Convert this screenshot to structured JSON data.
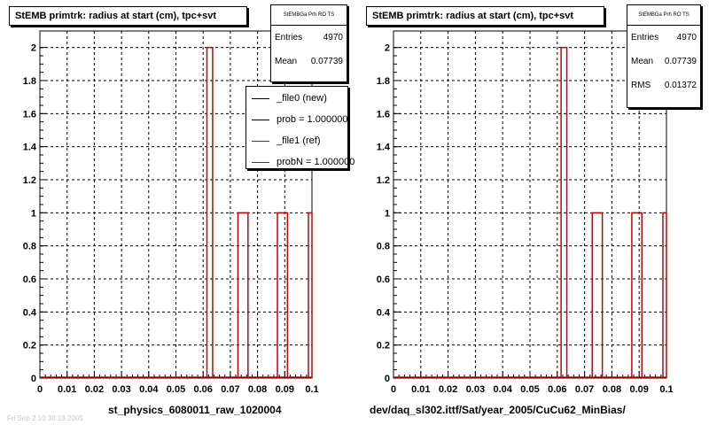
{
  "chart_data": [
    {
      "type": "histogram",
      "title": "StEMB primtrk: radius at start (cm), tpc+svt",
      "xlim": [
        0,
        0.1
      ],
      "ylim": [
        0,
        2.1
      ],
      "x_ticks": [
        "0",
        "0.01",
        "0.02",
        "0.03",
        "0.04",
        "0.05",
        "0.06",
        "0.07",
        "0.08",
        "0.09",
        "0.1"
      ],
      "y_ticks": [
        "0",
        "0.2",
        "0.4",
        "0.6",
        "0.8",
        "1",
        "1.2",
        "1.4",
        "1.6",
        "1.8",
        "2"
      ],
      "grid": true,
      "xcaption": "st_physics_6080011_raw_1020004",
      "stats": {
        "header": "StEMBGa Prh RO TS",
        "rows": [
          {
            "label": "Entries",
            "value": "4970"
          },
          {
            "label": "Mean",
            "value": "0.07739"
          }
        ]
      },
      "legend": {
        "placement": "top-right",
        "entries": [
          {
            "label": "_file0 (new)",
            "color": "#000000"
          },
          {
            "label": "prob = 1.000000",
            "color": "#000000"
          },
          {
            "label": "_file1 (ref)",
            "color": "#cc0000"
          },
          {
            "label": "probN = 1.000000",
            "color": "#cc0000"
          }
        ]
      },
      "series": [
        {
          "color": "#cc0000",
          "bins": [
            {
              "x0": 0.0614,
              "x1": 0.0635,
              "y": 2
            },
            {
              "x0": 0.0728,
              "x1": 0.0765,
              "y": 1
            },
            {
              "x0": 0.0873,
              "x1": 0.091,
              "y": 1
            },
            {
              "x0": 0.0987,
              "x1": 0.1,
              "y": 1
            }
          ]
        }
      ]
    },
    {
      "type": "histogram",
      "title": "StEMB primtrk: radius at start (cm), tpc+svt",
      "xlim": [
        0,
        0.1
      ],
      "ylim": [
        0,
        2.1
      ],
      "x_ticks": [
        "0",
        "0.01",
        "0.02",
        "0.03",
        "0.04",
        "0.05",
        "0.06",
        "0.07",
        "0.08",
        "0.09",
        "0.1"
      ],
      "y_ticks": [
        "0",
        "0.2",
        "0.4",
        "0.6",
        "0.8",
        "1",
        "1.2",
        "1.4",
        "1.6",
        "1.8",
        "2"
      ],
      "grid": true,
      "xcaption": "dev/daq_sl302.ittf/Sat/year_2005/CuCu62_MinBias/",
      "stats": {
        "header": "StEMBGa Prh RO TS",
        "rows": [
          {
            "label": "Entries",
            "value": "4970"
          },
          {
            "label": "Mean",
            "value": "0.07739"
          },
          {
            "label": "RMS",
            "value": "0.01372"
          }
        ]
      },
      "series": [
        {
          "color": "#cc0000",
          "bins": [
            {
              "x0": 0.0614,
              "x1": 0.0635,
              "y": 2
            },
            {
              "x0": 0.0728,
              "x1": 0.0765,
              "y": 1
            },
            {
              "x0": 0.0873,
              "x1": 0.091,
              "y": 1
            },
            {
              "x0": 0.0987,
              "x1": 0.1,
              "y": 1
            }
          ]
        }
      ]
    }
  ],
  "footer": {
    "text": "Fri Sep 2 10:38:13 2005"
  }
}
